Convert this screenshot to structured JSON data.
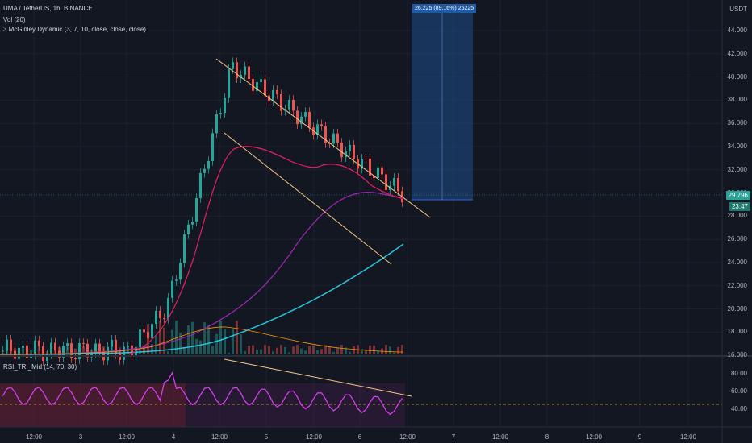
{
  "legend": {
    "symbol": "UMA / TetherUS, 1h, BINANCE",
    "vol": "Vol (20)",
    "mcginley": "3 McGinley Dynamic (3, 7, 10, close, close, close)",
    "rsi": "RSI_TRI_Mid (14, 70, 30)"
  },
  "currency": "USDT",
  "price_axis": [
    "44.000",
    "42.000",
    "40.000",
    "38.000",
    "36.000",
    "34.000",
    "32.000",
    "30.000",
    "28.000",
    "26.000",
    "24.000",
    "22.000",
    "20.000",
    "18.000",
    "16.000"
  ],
  "last_price": "29.796",
  "countdown": "23:47",
  "rsi_axis": [
    "80.00",
    "60.00",
    "40.00"
  ],
  "time_axis": [
    "12:00",
    "3",
    "12:00",
    "4",
    "12:00",
    "5",
    "12:00",
    "6",
    "12:00",
    "7",
    "12:00",
    "8",
    "12:00",
    "9",
    "12:00"
  ],
  "position_box_label": "26.225 (89.16%) 26225",
  "colors": {
    "background": "#131722",
    "up": "#26a69a",
    "down": "#ef5350",
    "channel": "#f7c785",
    "mcg_fast": "#e91e63",
    "mcg_mid": "#9c27b0",
    "mcg_slow": "#26c6da",
    "rsi": "#e040fb",
    "box": "#1e4c8a"
  }
}
